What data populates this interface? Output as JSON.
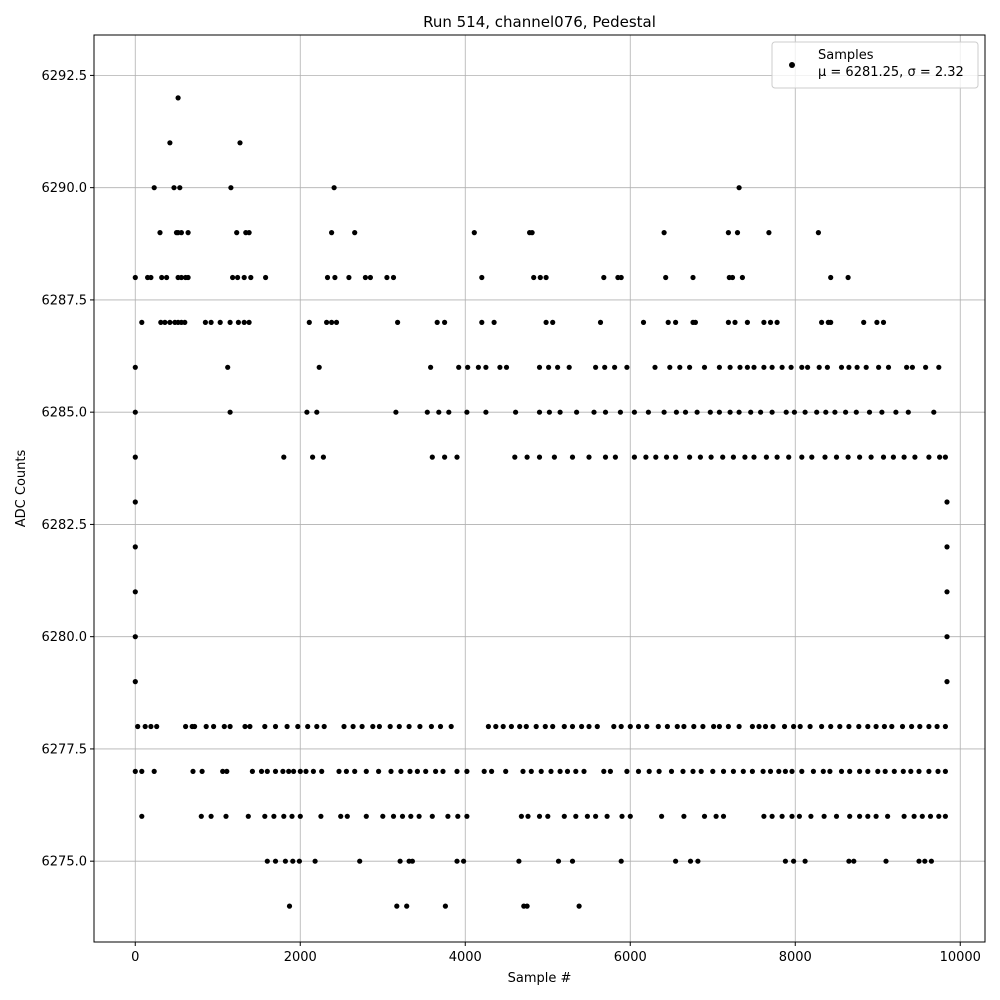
{
  "chart_data": {
    "type": "scatter",
    "title": "Run 514, channel076, Pedestal",
    "xlabel": "Sample #",
    "ylabel": "ADC Counts",
    "xlim": [
      -500,
      10300
    ],
    "ylim": [
      6273.2,
      6293.4
    ],
    "xticks": [
      0,
      2000,
      4000,
      6000,
      8000,
      10000
    ],
    "yticks": [
      6275.0,
      6277.5,
      6280.0,
      6282.5,
      6285.0,
      6287.5,
      6290.0,
      6292.5
    ],
    "grid": true,
    "legend": {
      "placement": "top-right",
      "entries": [
        "Samples",
        "μ = 6281.25, σ = 2.32"
      ]
    },
    "marker_color": "#000000",
    "series": [
      {
        "name": "Samples",
        "level_samples": [
          {
            "y": 6292,
            "x": [
              520
            ]
          },
          {
            "y": 6291,
            "x": [
              420,
              1270
            ]
          },
          {
            "y": 6290,
            "x": [
              230,
              470,
              540,
              1160,
              2410,
              7320
            ]
          },
          {
            "y": 6289,
            "x": [
              300,
              500,
              520,
              560,
              640,
              1230,
              1340,
              1380,
              2380,
              2660,
              4110,
              4780,
              4810,
              6410,
              7190,
              7300,
              7680,
              8280
            ]
          },
          {
            "y": 6288,
            "x": [
              0,
              150,
              190,
              320,
              380,
              520,
              560,
              610,
              640,
              1180,
              1240,
              1320,
              1400,
              1580,
              2330,
              2420,
              2590,
              2790,
              2850,
              3050,
              3130,
              4200,
              4830,
              4910,
              4980,
              5680,
              5850,
              5890,
              6430,
              6760,
              7200,
              7240,
              7360,
              8430,
              8640
            ]
          },
          {
            "y": 6287,
            "x": [
              80,
              310,
              360,
              420,
              480,
              520,
              560,
              600,
              850,
              920,
              1030,
              1150,
              1250,
              1320,
              1380,
              2110,
              2320,
              2380,
              2440,
              3180,
              3660,
              3750,
              4200,
              4350,
              4980,
              5060,
              5640,
              6160,
              6460,
              6550,
              6760,
              6790,
              7190,
              7270,
              7420,
              7620,
              7700,
              7780,
              8320,
              8400,
              8430,
              8830,
              8990,
              9070
            ]
          },
          {
            "y": 6286,
            "x": [
              0,
              1120,
              2230,
              3580,
              3920,
              4030,
              4160,
              4250,
              4420,
              4500,
              4900,
              5010,
              5120,
              5260,
              5580,
              5690,
              5810,
              5960,
              6300,
              6480,
              6600,
              6720,
              6900,
              7080,
              7210,
              7330,
              7420,
              7500,
              7620,
              7720,
              7840,
              7950,
              8080,
              8150,
              8290,
              8390,
              8560,
              8650,
              8750,
              8860,
              9010,
              9130,
              9350,
              9420,
              9580,
              9740
            ]
          },
          {
            "y": 6285,
            "x": [
              0,
              1150,
              2080,
              2200,
              3160,
              3540,
              3680,
              3800,
              4020,
              4250,
              4610,
              4900,
              5020,
              5150,
              5350,
              5560,
              5700,
              5880,
              6050,
              6220,
              6410,
              6560,
              6670,
              6810,
              6970,
              7080,
              7210,
              7320,
              7460,
              7580,
              7720,
              7890,
              7990,
              8120,
              8260,
              8370,
              8480,
              8610,
              8740,
              8900,
              9050,
              9220,
              9370,
              9680
            ]
          },
          {
            "y": 6284,
            "x": [
              0,
              1800,
              2150,
              2280,
              3600,
              3750,
              3900,
              4600,
              4750,
              4900,
              5080,
              5300,
              5500,
              5700,
              5820,
              6050,
              6190,
              6310,
              6440,
              6550,
              6720,
              6850,
              6980,
              7120,
              7250,
              7390,
              7500,
              7650,
              7780,
              7920,
              8080,
              8200,
              8360,
              8500,
              8640,
              8780,
              8920,
              9070,
              9190,
              9320,
              9450,
              9620,
              9750,
              9820
            ]
          },
          {
            "y": 6283,
            "x": [
              0,
              9840
            ]
          },
          {
            "y": 6282,
            "x": [
              0,
              9840
            ]
          },
          {
            "y": 6281,
            "x": [
              0,
              9840
            ]
          },
          {
            "y": 6280,
            "x": [
              0,
              9840
            ]
          },
          {
            "y": 6279,
            "x": [
              0,
              9840
            ]
          },
          {
            "y": 6278,
            "x": [
              30,
              120,
              190,
              260,
              610,
              690,
              720,
              860,
              950,
              1080,
              1150,
              1330,
              1390,
              1570,
              1700,
              1840,
              1970,
              2090,
              2200,
              2290,
              2530,
              2640,
              2750,
              2880,
              2960,
              3090,
              3200,
              3320,
              3450,
              3590,
              3700,
              3830,
              4280,
              4370,
              4460,
              4560,
              4660,
              4740,
              4860,
              4970,
              5060,
              5200,
              5300,
              5410,
              5500,
              5600,
              5800,
              5890,
              6000,
              6100,
              6200,
              6340,
              6450,
              6570,
              6650,
              6770,
              6880,
              7010,
              7080,
              7190,
              7320,
              7480,
              7560,
              7640,
              7730,
              7870,
              7980,
              8060,
              8180,
              8320,
              8430,
              8540,
              8650,
              8770,
              8880,
              8980,
              9080,
              9170,
              9300,
              9410,
              9510,
              9620,
              9720,
              9820
            ]
          },
          {
            "y": 6277,
            "x": [
              0,
              80,
              230,
              700,
              810,
              1060,
              1110,
              1420,
              1530,
              1600,
              1700,
              1790,
              1860,
              1920,
              2000,
              2070,
              2160,
              2260,
              2470,
              2560,
              2660,
              2800,
              2950,
              3100,
              3220,
              3330,
              3420,
              3520,
              3640,
              3730,
              3900,
              4020,
              4230,
              4320,
              4490,
              4700,
              4800,
              4920,
              5040,
              5150,
              5240,
              5340,
              5440,
              5680,
              5760,
              5960,
              6100,
              6230,
              6350,
              6500,
              6640,
              6760,
              6860,
              7000,
              7130,
              7250,
              7370,
              7480,
              7610,
              7700,
              7800,
              7880,
              7960,
              8080,
              8220,
              8340,
              8420,
              8560,
              8660,
              8780,
              8880,
              9000,
              9090,
              9200,
              9310,
              9400,
              9500,
              9620,
              9730,
              9820
            ]
          },
          {
            "y": 6276,
            "x": [
              80,
              800,
              920,
              1100,
              1370,
              1570,
              1680,
              1800,
              1900,
              2000,
              2250,
              2490,
              2570,
              2800,
              3000,
              3130,
              3240,
              3340,
              3440,
              3600,
              3790,
              3910,
              4020,
              4680,
              4760,
              4900,
              5000,
              5200,
              5340,
              5480,
              5580,
              5720,
              5900,
              6000,
              6380,
              6650,
              6900,
              7040,
              7130,
              7620,
              7720,
              7840,
              7960,
              8050,
              8190,
              8350,
              8500,
              8660,
              8780,
              8880,
              8980,
              9120,
              9320,
              9440,
              9540,
              9640,
              9740,
              9820
            ]
          },
          {
            "y": 6275,
            "x": [
              1600,
              1700,
              1820,
              1910,
              1990,
              2180,
              2720,
              3210,
              3320,
              3360,
              3900,
              3980,
              4650,
              5130,
              5300,
              5890,
              6550,
              6730,
              6820,
              7880,
              7980,
              8120,
              8650,
              8710,
              9100,
              9500,
              9570,
              9650
            ]
          },
          {
            "y": 6274,
            "x": [
              1870,
              3170,
              3290,
              3760,
              4710,
              4750,
              5380
            ]
          }
        ]
      }
    ]
  }
}
